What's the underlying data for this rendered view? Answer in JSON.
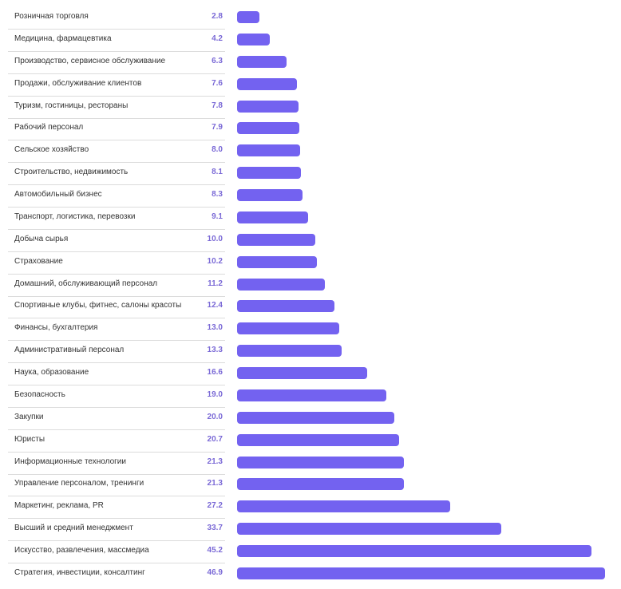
{
  "chart_data": {
    "type": "bar",
    "orientation": "horizontal",
    "bar_color": "#7362f0",
    "value_color": "#7a69d6",
    "grid": false,
    "xlim": [
      0,
      46.9
    ],
    "categories": [
      "Розничная торговля",
      "Медицина, фармацевтика",
      "Производство, сервисное обслуживание",
      "Продажи, обслуживание клиентов",
      "Туризм, гостиницы, рестораны",
      "Рабочий персонал",
      "Сельское хозяйство",
      "Строительство, недвижимость",
      "Автомобильный бизнес",
      "Транспорт, логистика, перевозки",
      "Добыча сырья",
      "Страхование",
      "Домашний, обслуживающий персонал",
      "Спортивные клубы, фитнес, салоны красоты",
      "Финансы, бухгалтерия",
      "Административный персонал",
      "Наука, образование",
      "Безопасность",
      "Закупки",
      "Юристы",
      "Информационные технологии",
      "Управление персоналом, тренинги",
      "Маркетинг, реклама, PR",
      "Высший и средний менеджмент",
      "Искусство, развлечения, массмедиа",
      "Стратегия, инвестиции, консалтинг"
    ],
    "values": [
      2.8,
      4.2,
      6.3,
      7.6,
      7.8,
      7.9,
      8.0,
      8.1,
      8.3,
      9.1,
      10.0,
      10.2,
      11.2,
      12.4,
      13.0,
      13.3,
      16.6,
      19.0,
      20.0,
      20.7,
      21.3,
      21.3,
      27.2,
      33.7,
      45.2,
      46.9
    ],
    "value_labels": [
      "2.8",
      "4.2",
      "6.3",
      "7.6",
      "7.8",
      "7.9",
      "8.0",
      "8.1",
      "8.3",
      "9.1",
      "10.0",
      "10.2",
      "11.2",
      "12.4",
      "13.0",
      "13.3",
      "16.6",
      "19.0",
      "20.0",
      "20.7",
      "21.3",
      "21.3",
      "27.2",
      "33.7",
      "45.2",
      "46.9"
    ]
  }
}
